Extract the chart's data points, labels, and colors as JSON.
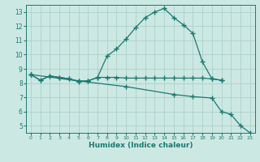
{
  "line1_x": [
    0,
    1,
    2,
    3,
    4,
    5,
    6,
    7,
    8,
    9,
    10,
    11,
    12,
    13,
    14,
    15,
    16,
    17,
    18,
    19,
    20
  ],
  "line1_y": [
    8.6,
    8.2,
    8.5,
    8.4,
    8.3,
    8.1,
    8.15,
    8.4,
    9.9,
    10.4,
    11.1,
    11.9,
    12.6,
    13.0,
    13.25,
    12.6,
    12.1,
    11.5,
    9.5,
    8.3,
    8.2
  ],
  "line2_x": [
    0,
    1,
    2,
    3,
    4,
    5,
    6,
    7,
    8,
    9,
    10,
    11,
    12,
    13,
    14,
    15,
    16,
    17,
    18,
    19,
    20
  ],
  "line2_y": [
    8.6,
    8.2,
    8.5,
    8.4,
    8.3,
    8.15,
    8.15,
    8.4,
    8.4,
    8.4,
    8.35,
    8.35,
    8.35,
    8.35,
    8.35,
    8.35,
    8.35,
    8.35,
    8.35,
    8.3,
    8.2
  ],
  "line3_x": [
    0,
    5,
    10,
    15,
    17,
    19,
    20,
    21,
    22,
    23
  ],
  "line3_y": [
    8.6,
    8.15,
    7.75,
    7.2,
    7.05,
    6.95,
    6.0,
    5.8,
    5.0,
    4.5
  ],
  "color": "#1a7a6e",
  "bg_color": "#cce8e3",
  "grid_color": "#aecfcb",
  "xlabel": "Humidex (Indice chaleur)",
  "xlim": [
    -0.5,
    23.5
  ],
  "ylim": [
    4.5,
    13.5
  ],
  "yticks": [
    5,
    6,
    7,
    8,
    9,
    10,
    11,
    12,
    13
  ],
  "xticks": [
    0,
    1,
    2,
    3,
    4,
    5,
    6,
    7,
    8,
    9,
    10,
    11,
    12,
    13,
    14,
    15,
    16,
    17,
    18,
    19,
    20,
    21,
    22,
    23
  ]
}
